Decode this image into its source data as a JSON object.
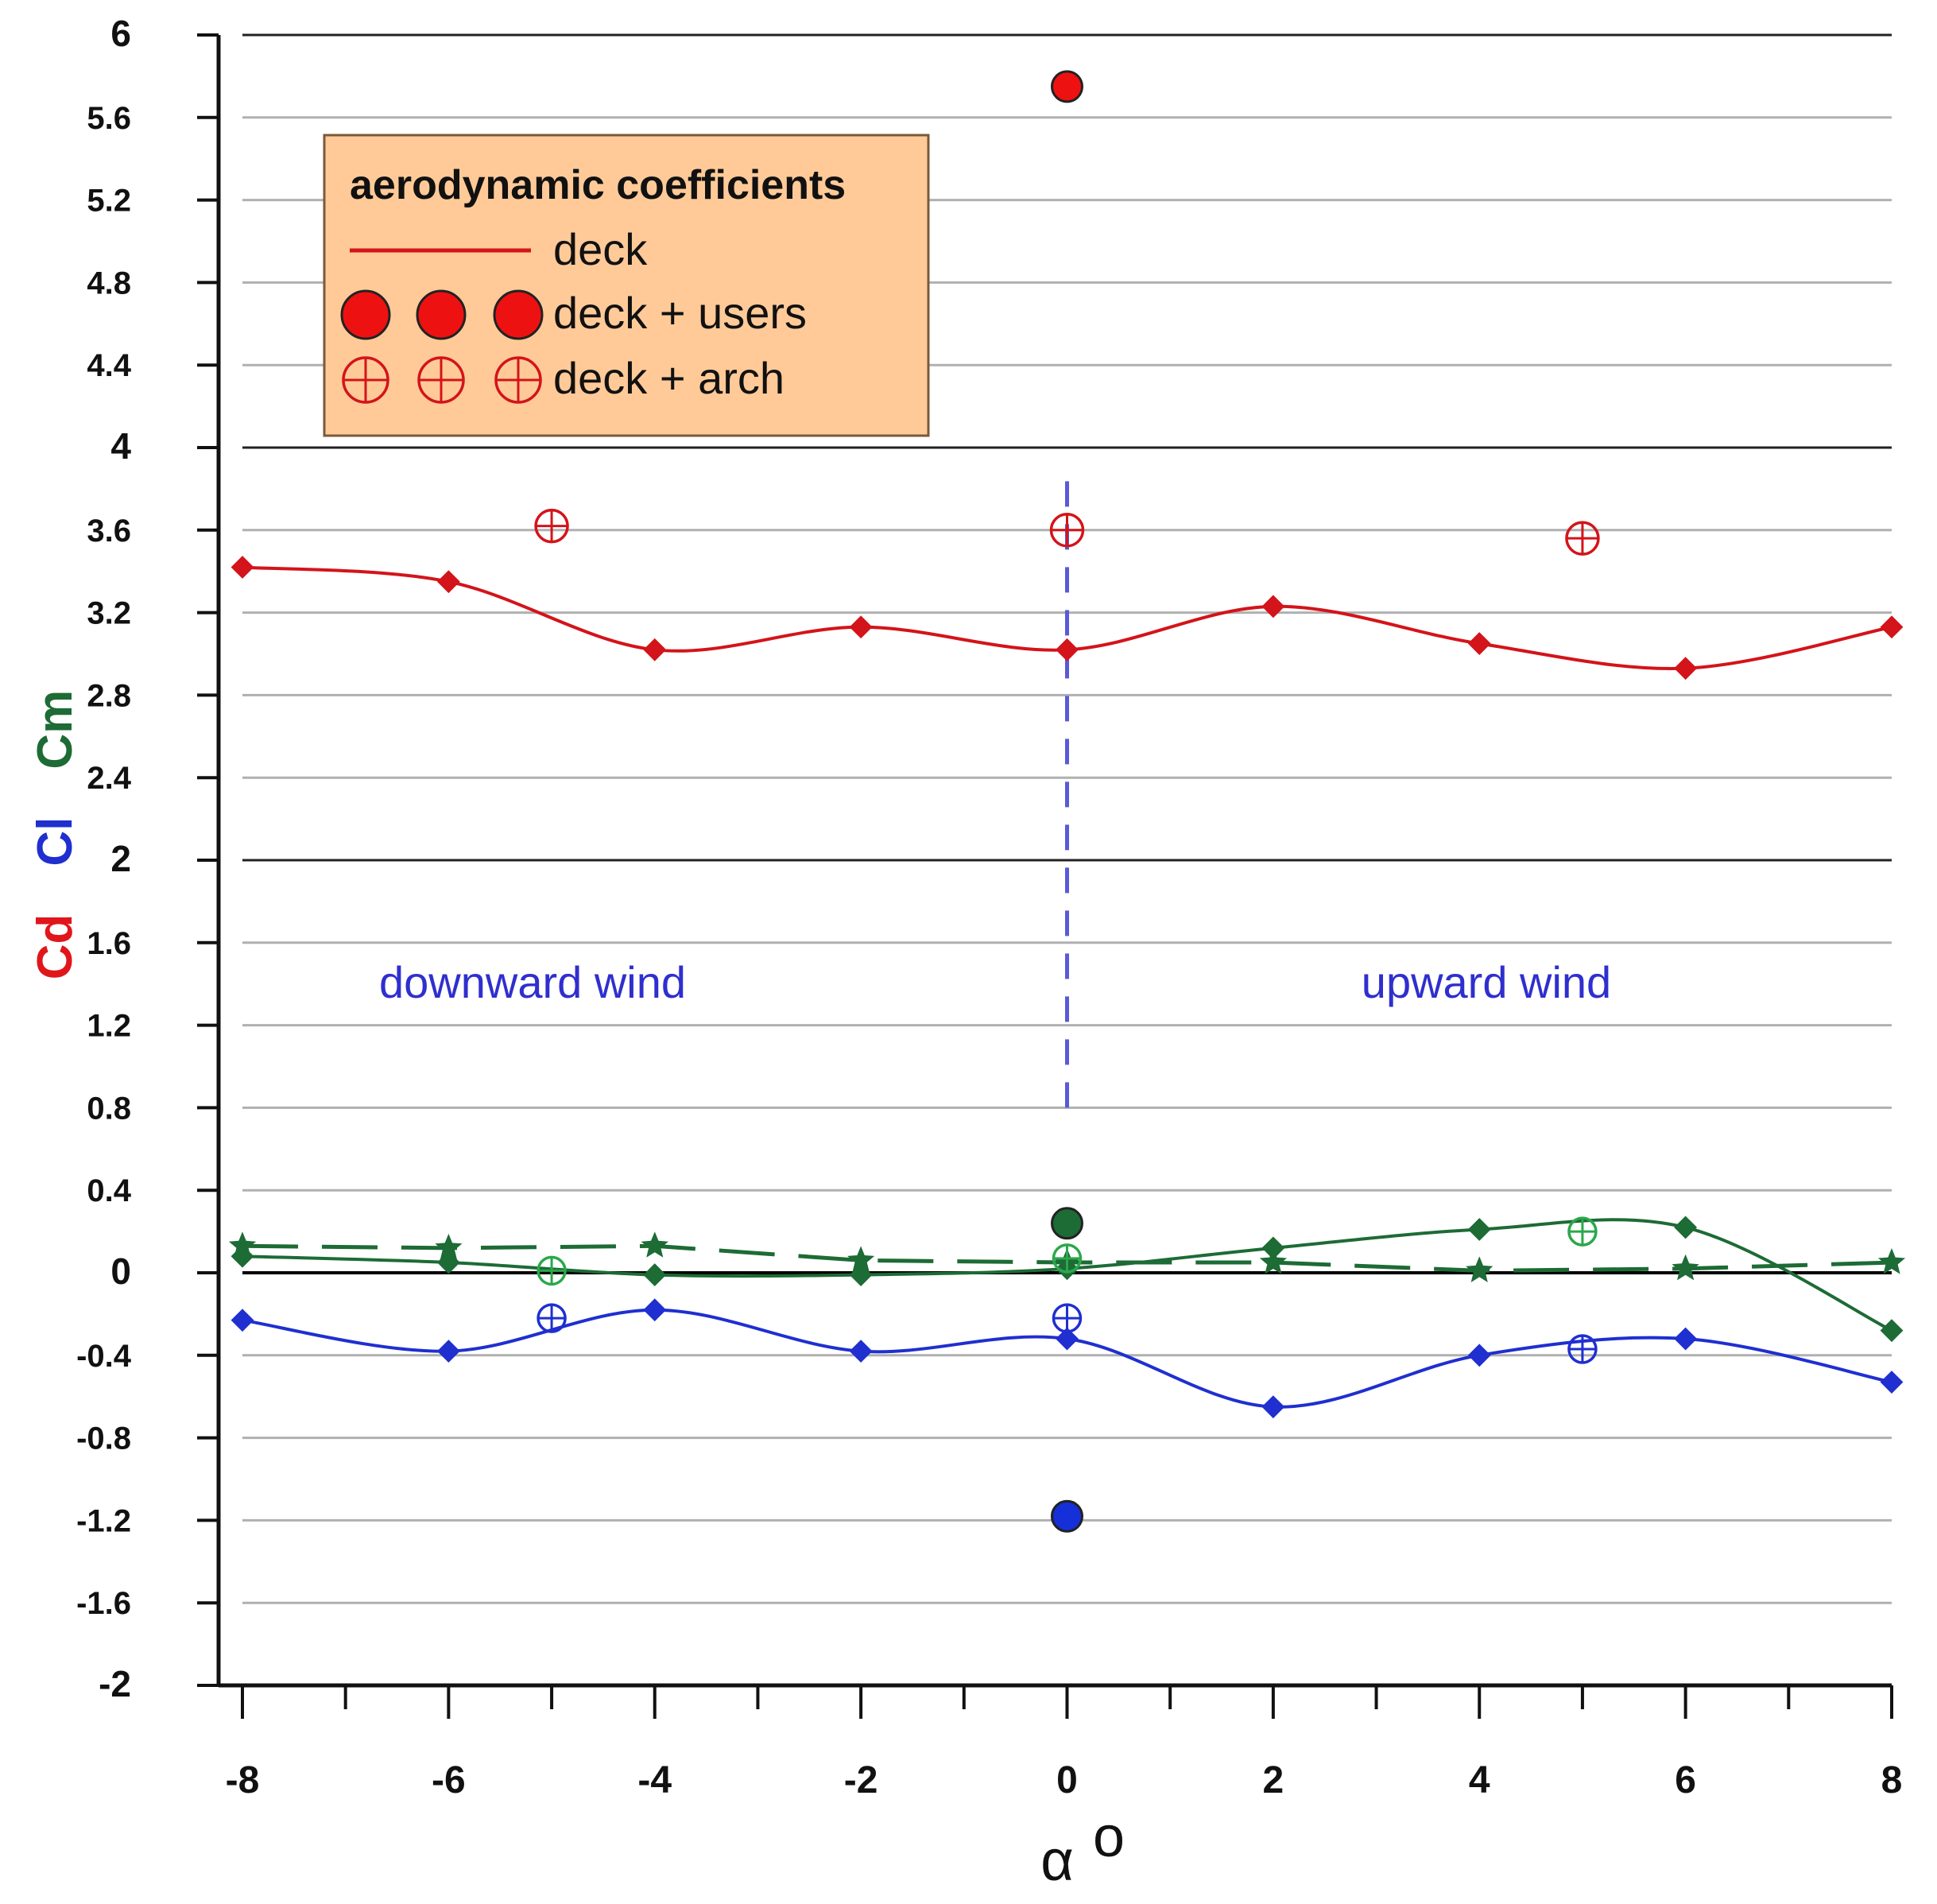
{
  "chart_data": {
    "type": "line",
    "x": [
      -8,
      -6,
      -4,
      -2,
      0,
      2,
      4,
      6,
      8
    ],
    "xlim": [
      -8,
      8
    ],
    "ylim": [
      -2,
      6
    ],
    "y_ticks": [
      "-2",
      "-1.6",
      "-1.2",
      "-0.8",
      "-0.4",
      "0",
      "0.4",
      "0.8",
      "1.2",
      "1.6",
      "2",
      "2.4",
      "2.8",
      "3.2",
      "3.6",
      "4",
      "4.4",
      "4.8",
      "5.2",
      "5.6",
      "6"
    ],
    "x_ticks": [
      "-8",
      "-6",
      "-4",
      "-2",
      "0",
      "2",
      "4",
      "6",
      "8"
    ],
    "xlabel": "α",
    "xlabel_sup": "o",
    "ylabel_parts": [
      {
        "text": "Cd",
        "color": "#e0161b"
      },
      {
        "text": "Cl",
        "color": "#1f2fd0"
      },
      {
        "text": "Cm",
        "color": "#1d6b35"
      }
    ],
    "series": [
      {
        "name": "Cd deck",
        "color": "#d3141a",
        "marker": "diamond",
        "values": [
          3.42,
          3.35,
          3.02,
          3.13,
          3.02,
          3.23,
          3.05,
          2.93,
          3.13
        ]
      },
      {
        "name": "Cl deck",
        "color": "#1f2fd0",
        "marker": "diamond",
        "values": [
          -0.23,
          -0.38,
          -0.18,
          -0.38,
          -0.32,
          -0.65,
          -0.4,
          -0.32,
          -0.53
        ]
      },
      {
        "name": "Cm deck",
        "color": "#1d6b35",
        "marker": "diamond",
        "values": [
          0.08,
          0.05,
          -0.01,
          -0.01,
          0.02,
          0.12,
          0.21,
          0.22,
          -0.28
        ]
      },
      {
        "name": "Cm stars",
        "color": "#1d6b35",
        "marker": "star",
        "dashed": true,
        "values": [
          0.13,
          0.12,
          0.13,
          0.06,
          0.05,
          0.05,
          0.01,
          0.02,
          0.05
        ]
      }
    ],
    "deck_users": [
      {
        "x": 0,
        "y": 5.75,
        "color": "#ee1111"
      },
      {
        "x": 0,
        "y": 0.24,
        "color": "#1d6b35"
      },
      {
        "x": 0,
        "y": -1.18,
        "color": "#1530d8"
      }
    ],
    "deck_arch": [
      {
        "x": -5,
        "y": 3.62,
        "color": "#d3141a"
      },
      {
        "x": 0,
        "y": 3.6,
        "color": "#d3141a"
      },
      {
        "x": 5,
        "y": 3.56,
        "color": "#d3141a"
      },
      {
        "x": -5,
        "y": 0.01,
        "color": "#2aa84a"
      },
      {
        "x": 0,
        "y": 0.07,
        "color": "#2aa84a"
      },
      {
        "x": 5,
        "y": 0.2,
        "color": "#2aa84a"
      },
      {
        "x": -5,
        "y": -0.22,
        "color": "#1f2fd0"
      },
      {
        "x": 0,
        "y": -0.22,
        "color": "#1f2fd0"
      },
      {
        "x": 5,
        "y": -0.37,
        "color": "#1f2fd0"
      }
    ],
    "divider": {
      "x": 0,
      "from": 0.8,
      "to": 3.85,
      "color": "#5a5ad8"
    },
    "annotations": {
      "left": "downward wind",
      "right": "upward wind"
    },
    "legend": {
      "title": "aerodynamic coefficients",
      "placement": "top-left",
      "background": "#ffca98",
      "entries": [
        "deck",
        "deck + users",
        "deck + arch"
      ]
    }
  }
}
